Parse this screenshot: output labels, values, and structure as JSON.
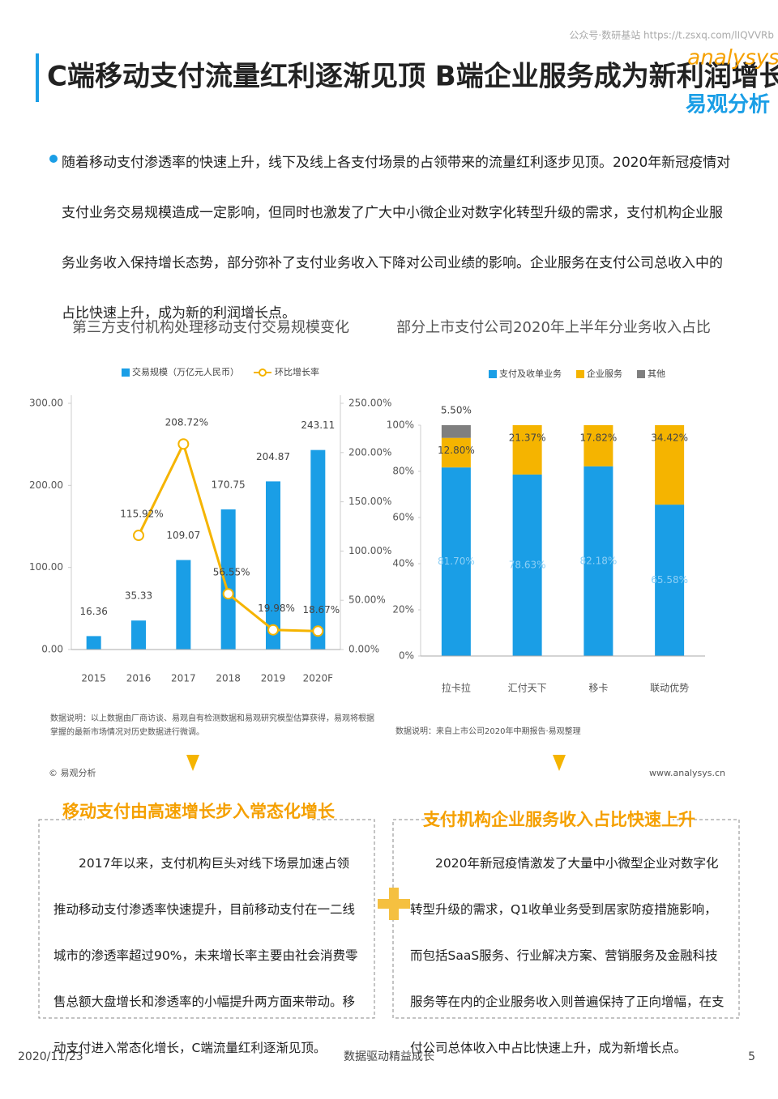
{
  "header": {
    "title": "C端移动支付流量红利逐渐见顶 B端企业服务成为新利润增长点",
    "source": "公众号·数研基站 https://t.zsxq.com/lIQVVRb",
    "logo": "analysys",
    "logo_cn": "易观分析"
  },
  "intro": "随着移动支付渗透率的快速上升，线下及线上各支付场景的占领带来的流量红利逐步见顶。2020年新冠疫情对支付业务交易规模造成一定影响，但同时也激发了广大中小微企业对数字化转型升级的需求，支付机构企业服务业务收入保持增长态势，部分弥补了支付业务收入下降对公司业绩的影响。企业服务在支付公司总收入中的占比快速上升，成为新的利润增长点。",
  "chart_data": [
    {
      "type": "bar",
      "title": "第三方支付机构处理移动支付交易规模变化",
      "categories": [
        "2015",
        "2016",
        "2017",
        "2018",
        "2019",
        "2020F"
      ],
      "series": [
        {
          "name": "交易规模（万亿元人民币）",
          "color": "#1a9ee6",
          "values": [
            16.36,
            35.33,
            109.07,
            170.75,
            204.87,
            243.11
          ]
        },
        {
          "name": "环比增长率",
          "color": "#f5b400",
          "axis": "y2",
          "values": [
            null,
            115.92,
            208.72,
            56.55,
            19.98,
            18.67
          ],
          "value_labels": [
            null,
            "115.92%",
            "208.72%",
            "56.55%",
            "19.98%",
            "18.67%"
          ]
        }
      ],
      "ylim": [
        0,
        300
      ],
      "yticks": [
        {
          "value": 0,
          "label": "0.00"
        },
        {
          "value": 100,
          "label": "100.00"
        },
        {
          "value": 200,
          "label": "200.00"
        },
        {
          "value": 300,
          "label": "300.00"
        }
      ],
      "y2lim": [
        0,
        250
      ],
      "y2ticks": [
        {
          "value": 0,
          "label": "0.00%"
        },
        {
          "value": 50,
          "label": "50.00%"
        },
        {
          "value": 100,
          "label": "100.00%"
        },
        {
          "value": 150,
          "label": "150.00%"
        },
        {
          "value": 200,
          "label": "200.00%"
        },
        {
          "value": 250,
          "label": "250.00%"
        }
      ],
      "note": "数据说明：以上数据由厂商访谈、易观自有检测数据和易观研究模型估算获得，易观将根据掌握的最新市场情况对历史数据进行微调。"
    },
    {
      "type": "stacked_bar",
      "title": "部分上市支付公司2020年上半年分业务收入占比",
      "categories": [
        "拉卡拉",
        "汇付天下",
        "移卡",
        "联动优势"
      ],
      "series": [
        {
          "name": "支付及收单业务",
          "color": "#1a9ee6",
          "values": [
            81.7,
            78.63,
            82.18,
            65.58
          ],
          "value_labels": [
            "81.70%",
            "78.63%",
            "82.18%",
            "65.58%"
          ]
        },
        {
          "name": "企业服务",
          "color": "#f5b400",
          "values": [
            12.8,
            21.37,
            17.82,
            34.42
          ],
          "value_labels": [
            "12.80%",
            "21.37%",
            "17.82%",
            "34.42%"
          ]
        },
        {
          "name": "其他",
          "color": "#7f7f7f",
          "values": [
            5.5,
            null,
            null,
            null
          ],
          "value_labels": [
            "5.50%",
            null,
            null,
            null
          ]
        }
      ],
      "ylim": [
        0,
        100
      ],
      "yticks": [
        {
          "value": 0,
          "label": "0%"
        },
        {
          "value": 20,
          "label": "20%"
        },
        {
          "value": 40,
          "label": "40%"
        },
        {
          "value": 60,
          "label": "60%"
        },
        {
          "value": 80,
          "label": "80%"
        },
        {
          "value": 100,
          "label": "100%"
        }
      ],
      "note": "数据说明：来自上市公司2020年中期报告·易观整理"
    }
  ],
  "copyright": "© 易观分析",
  "website": "www.analysys.cn",
  "boxes": [
    {
      "title": "移动支付由高速增长步入常态化增长",
      "text": "2017年以来，支付机构巨头对线下场景加速占领推动移动支付渗透率快速提升，目前移动支付在一二线城市的渗透率超过90%，未来增长率主要由社会消费零售总额大盘增长和渗透率的小幅提升两方面来带动。移动支付进入常态化增长，C端流量红利逐渐见顶。"
    },
    {
      "title": "支付机构企业服务收入占比快速上升",
      "text": "2020年新冠疫情激发了大量中小微型企业对数字化转型升级的需求，Q1收单业务受到居家防疫措施影响，而包括SaaS服务、行业解决方案、营销服务及金融科技服务等在内的企业服务收入则普遍保持了正向增幅，在支付公司总体收入中占比快速上升，成为新增长点。"
    }
  ],
  "footer": {
    "date": "2020/11/23",
    "slogan": "数据驱动精益成长",
    "page": "5"
  }
}
